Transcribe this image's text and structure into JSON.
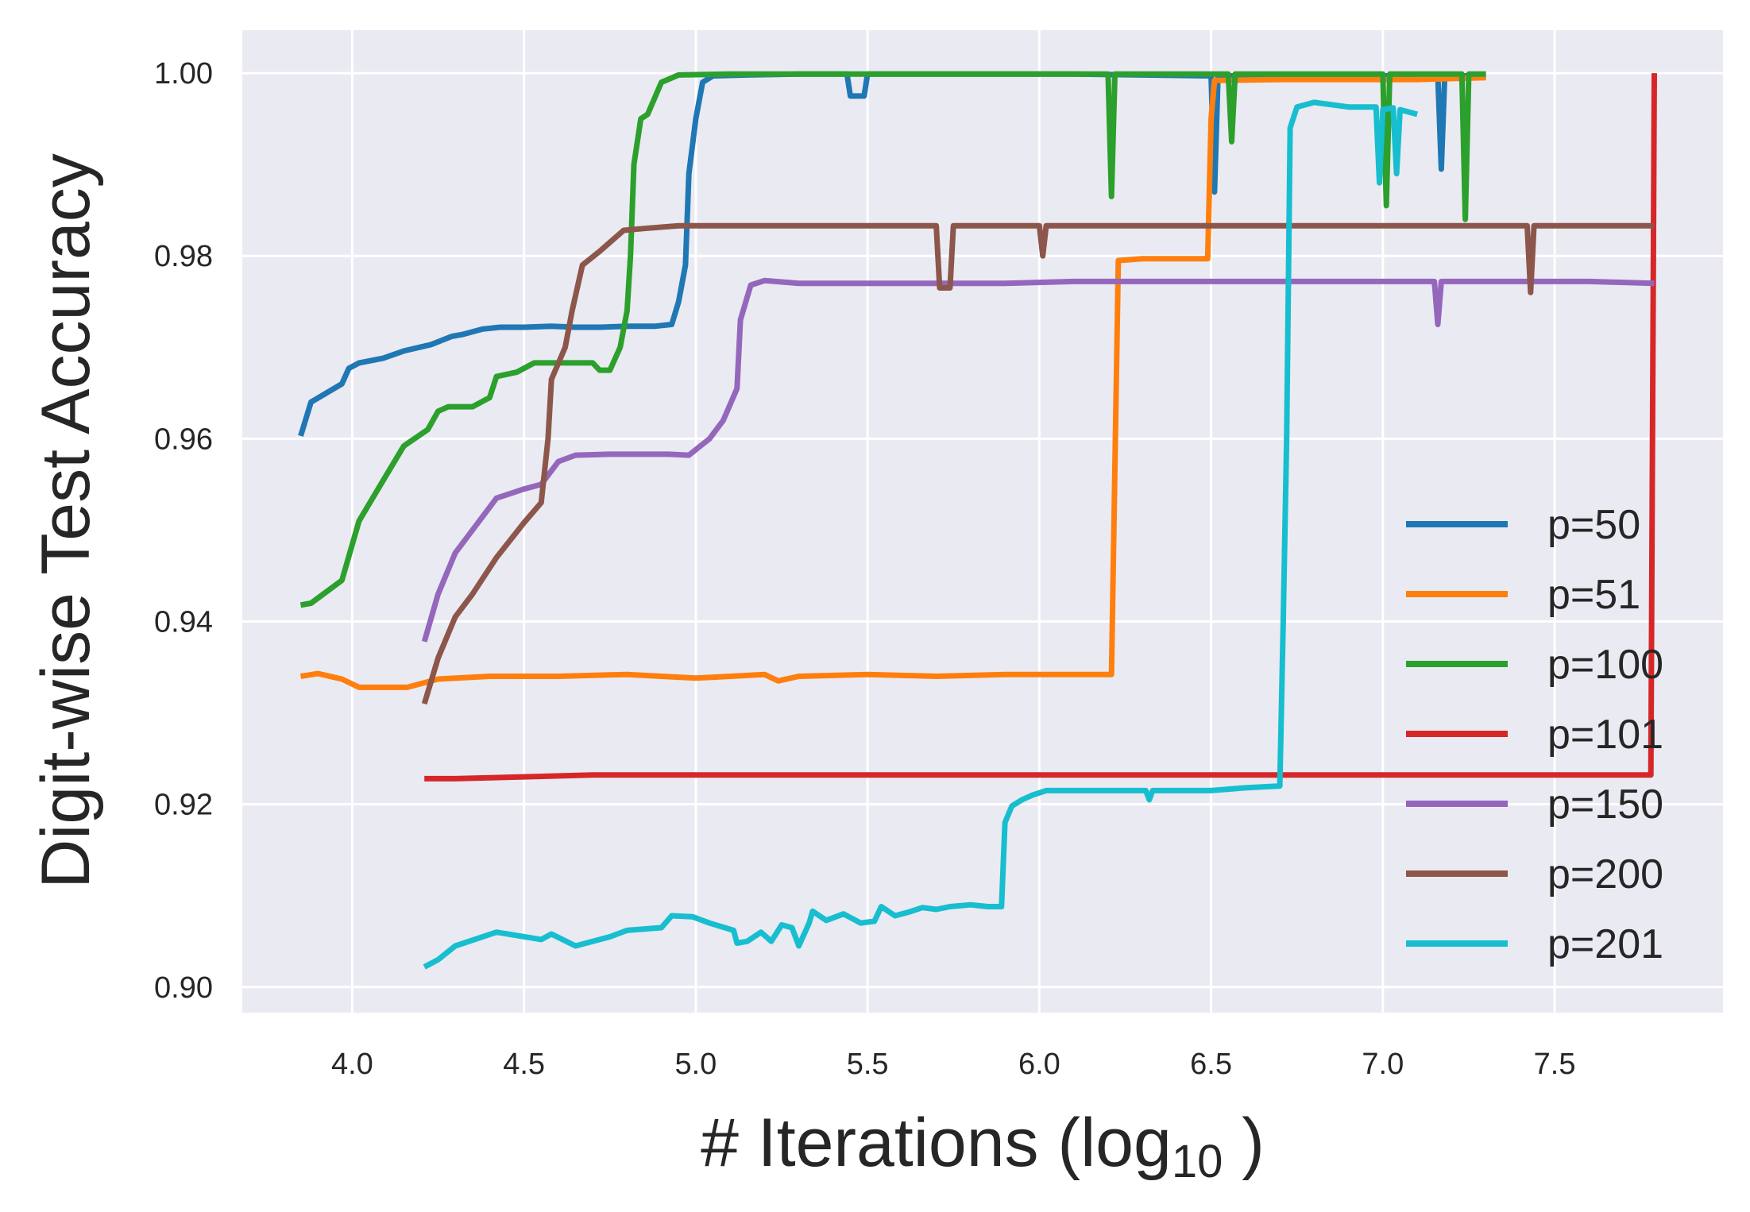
{
  "chart_data": {
    "type": "line",
    "title": "",
    "xlabel": "# Iterations (log",
    "xlabel_sub": "10",
    "xlabel_close": " )",
    "ylabel": "Digit-wise Test Accuracy",
    "xlim": [
      3.68,
      7.99
    ],
    "ylim": [
      0.8972,
      1.0047
    ],
    "xticks": [
      4.0,
      4.5,
      5.0,
      5.5,
      6.0,
      6.5,
      7.0,
      7.5
    ],
    "xtick_labels": [
      "4.0",
      "4.5",
      "5.0",
      "5.5",
      "6.0",
      "6.5",
      "7.0",
      "7.5"
    ],
    "yticks": [
      0.9,
      0.92,
      0.94,
      0.96,
      0.98,
      1.0
    ],
    "ytick_labels": [
      "0.90",
      "0.92",
      "0.94",
      "0.96",
      "0.98",
      "1.00"
    ],
    "grid": true,
    "legend": "center-right",
    "series": [
      {
        "name": "p=50",
        "color": "#1f77b4",
        "points": [
          [
            3.85,
            0.9603
          ],
          [
            3.88,
            0.964
          ],
          [
            3.97,
            0.966
          ],
          [
            3.99,
            0.9677
          ],
          [
            4.02,
            0.9683
          ],
          [
            4.09,
            0.9688
          ],
          [
            4.15,
            0.9696
          ],
          [
            4.23,
            0.9703
          ],
          [
            4.29,
            0.9712
          ],
          [
            4.32,
            0.9714
          ],
          [
            4.38,
            0.972
          ],
          [
            4.43,
            0.9722
          ],
          [
            4.5,
            0.9722
          ],
          [
            4.58,
            0.9723
          ],
          [
            4.65,
            0.9722
          ],
          [
            4.72,
            0.9722
          ],
          [
            4.8,
            0.9723
          ],
          [
            4.88,
            0.9723
          ],
          [
            4.93,
            0.9725
          ],
          [
            4.95,
            0.975
          ],
          [
            4.97,
            0.979
          ],
          [
            4.98,
            0.989
          ],
          [
            5.0,
            0.995
          ],
          [
            5.02,
            0.999
          ],
          [
            5.05,
            0.9997
          ],
          [
            5.15,
            0.9998
          ],
          [
            5.3,
            0.9999
          ],
          [
            5.44,
            0.9999
          ],
          [
            5.45,
            0.9975
          ],
          [
            5.49,
            0.9975
          ],
          [
            5.5,
            0.9999
          ],
          [
            5.7,
            0.9999
          ],
          [
            5.9,
            0.9999
          ],
          [
            6.1,
            0.9999
          ],
          [
            6.3,
            0.9998
          ],
          [
            6.5,
            0.9997
          ],
          [
            6.51,
            0.987
          ],
          [
            6.52,
            0.9997
          ],
          [
            6.7,
            0.9997
          ],
          [
            6.9,
            0.9997
          ],
          [
            7.1,
            0.9997
          ],
          [
            7.16,
            0.9997
          ],
          [
            7.17,
            0.9895
          ],
          [
            7.18,
            0.9997
          ],
          [
            7.3,
            0.9997
          ]
        ]
      },
      {
        "name": "p=51",
        "color": "#ff7f0e",
        "points": [
          [
            3.85,
            0.934
          ],
          [
            3.9,
            0.9343
          ],
          [
            3.97,
            0.9337
          ],
          [
            4.02,
            0.9328
          ],
          [
            4.1,
            0.9328
          ],
          [
            4.16,
            0.9328
          ],
          [
            4.25,
            0.9337
          ],
          [
            4.4,
            0.934
          ],
          [
            4.6,
            0.934
          ],
          [
            4.8,
            0.9342
          ],
          [
            5.0,
            0.9338
          ],
          [
            5.2,
            0.9342
          ],
          [
            5.24,
            0.9335
          ],
          [
            5.3,
            0.934
          ],
          [
            5.5,
            0.9342
          ],
          [
            5.7,
            0.934
          ],
          [
            5.9,
            0.9342
          ],
          [
            6.1,
            0.9342
          ],
          [
            6.21,
            0.9342
          ],
          [
            6.23,
            0.9795
          ],
          [
            6.3,
            0.9797
          ],
          [
            6.4,
            0.9797
          ],
          [
            6.49,
            0.9797
          ],
          [
            6.5,
            0.995
          ],
          [
            6.51,
            0.9992
          ],
          [
            6.7,
            0.9993
          ],
          [
            6.9,
            0.9993
          ],
          [
            7.1,
            0.9993
          ],
          [
            7.3,
            0.9995
          ]
        ]
      },
      {
        "name": "p=100",
        "color": "#2ca02c",
        "points": [
          [
            3.85,
            0.9418
          ],
          [
            3.88,
            0.942
          ],
          [
            3.97,
            0.9445
          ],
          [
            4.02,
            0.951
          ],
          [
            4.08,
            0.9548
          ],
          [
            4.15,
            0.9592
          ],
          [
            4.22,
            0.961
          ],
          [
            4.25,
            0.963
          ],
          [
            4.28,
            0.9635
          ],
          [
            4.35,
            0.9635
          ],
          [
            4.4,
            0.9645
          ],
          [
            4.42,
            0.9668
          ],
          [
            4.48,
            0.9673
          ],
          [
            4.53,
            0.9683
          ],
          [
            4.6,
            0.9683
          ],
          [
            4.7,
            0.9683
          ],
          [
            4.72,
            0.9675
          ],
          [
            4.75,
            0.9675
          ],
          [
            4.78,
            0.97
          ],
          [
            4.8,
            0.974
          ],
          [
            4.81,
            0.98
          ],
          [
            4.82,
            0.99
          ],
          [
            4.84,
            0.995
          ],
          [
            4.86,
            0.9955
          ],
          [
            4.9,
            0.999
          ],
          [
            4.95,
            0.9998
          ],
          [
            5.1,
            0.9999
          ],
          [
            5.3,
            0.9999
          ],
          [
            5.6,
            0.9999
          ],
          [
            5.9,
            0.9999
          ],
          [
            6.2,
            0.9999
          ],
          [
            6.21,
            0.9865
          ],
          [
            6.22,
            0.9999
          ],
          [
            6.5,
            0.9999
          ],
          [
            6.55,
            0.9999
          ],
          [
            6.56,
            0.9925
          ],
          [
            6.57,
            0.9999
          ],
          [
            6.9,
            0.9999
          ],
          [
            7.0,
            0.9999
          ],
          [
            7.01,
            0.9855
          ],
          [
            7.02,
            0.9999
          ],
          [
            7.23,
            0.9999
          ],
          [
            7.24,
            0.984
          ],
          [
            7.25,
            0.9999
          ],
          [
            7.3,
            0.9999
          ]
        ]
      },
      {
        "name": "p=101",
        "color": "#d62728",
        "points": [
          [
            4.21,
            0.9228
          ],
          [
            4.3,
            0.9228
          ],
          [
            4.5,
            0.923
          ],
          [
            4.7,
            0.9232
          ],
          [
            4.9,
            0.9232
          ],
          [
            5.1,
            0.9232
          ],
          [
            5.3,
            0.9232
          ],
          [
            5.5,
            0.9232
          ],
          [
            5.7,
            0.9232
          ],
          [
            5.9,
            0.9232
          ],
          [
            6.1,
            0.9232
          ],
          [
            6.3,
            0.9232
          ],
          [
            6.5,
            0.9232
          ],
          [
            6.7,
            0.9232
          ],
          [
            6.9,
            0.9232
          ],
          [
            7.1,
            0.9232
          ],
          [
            7.3,
            0.9232
          ],
          [
            7.5,
            0.9232
          ],
          [
            7.7,
            0.9232
          ],
          [
            7.78,
            0.9232
          ],
          [
            7.79,
            1.0
          ]
        ]
      },
      {
        "name": "p=150",
        "color": "#9467bd",
        "points": [
          [
            4.21,
            0.9378
          ],
          [
            4.25,
            0.943
          ],
          [
            4.3,
            0.9475
          ],
          [
            4.36,
            0.9505
          ],
          [
            4.42,
            0.9535
          ],
          [
            4.5,
            0.9545
          ],
          [
            4.55,
            0.955
          ],
          [
            4.6,
            0.9575
          ],
          [
            4.65,
            0.9582
          ],
          [
            4.75,
            0.9583
          ],
          [
            4.85,
            0.9583
          ],
          [
            4.92,
            0.9583
          ],
          [
            4.98,
            0.9582
          ],
          [
            5.04,
            0.96
          ],
          [
            5.08,
            0.962
          ],
          [
            5.12,
            0.9655
          ],
          [
            5.13,
            0.973
          ],
          [
            5.16,
            0.9768
          ],
          [
            5.2,
            0.9773
          ],
          [
            5.3,
            0.977
          ],
          [
            5.5,
            0.977
          ],
          [
            5.7,
            0.977
          ],
          [
            5.9,
            0.977
          ],
          [
            6.1,
            0.9772
          ],
          [
            6.3,
            0.9772
          ],
          [
            6.5,
            0.9772
          ],
          [
            6.7,
            0.9772
          ],
          [
            6.9,
            0.9772
          ],
          [
            7.1,
            0.9772
          ],
          [
            7.15,
            0.9772
          ],
          [
            7.16,
            0.9725
          ],
          [
            7.17,
            0.9772
          ],
          [
            7.4,
            0.9772
          ],
          [
            7.6,
            0.9772
          ],
          [
            7.79,
            0.977
          ]
        ]
      },
      {
        "name": "p=200",
        "color": "#8c564b",
        "points": [
          [
            4.21,
            0.931
          ],
          [
            4.25,
            0.936
          ],
          [
            4.3,
            0.9405
          ],
          [
            4.35,
            0.943
          ],
          [
            4.42,
            0.947
          ],
          [
            4.5,
            0.9508
          ],
          [
            4.55,
            0.953
          ],
          [
            4.57,
            0.96
          ],
          [
            4.58,
            0.9665
          ],
          [
            4.62,
            0.97
          ],
          [
            4.64,
            0.974
          ],
          [
            4.67,
            0.979
          ],
          [
            4.72,
            0.9805
          ],
          [
            4.79,
            0.9828
          ],
          [
            4.85,
            0.983
          ],
          [
            4.95,
            0.9833
          ],
          [
            5.1,
            0.9833
          ],
          [
            5.3,
            0.9833
          ],
          [
            5.5,
            0.9833
          ],
          [
            5.7,
            0.9833
          ],
          [
            5.71,
            0.9765
          ],
          [
            5.74,
            0.9765
          ],
          [
            5.75,
            0.9833
          ],
          [
            5.95,
            0.9833
          ],
          [
            6.0,
            0.9833
          ],
          [
            6.01,
            0.98
          ],
          [
            6.02,
            0.9833
          ],
          [
            6.2,
            0.9833
          ],
          [
            6.4,
            0.9833
          ],
          [
            6.6,
            0.9833
          ],
          [
            6.8,
            0.9833
          ],
          [
            7.0,
            0.9833
          ],
          [
            7.2,
            0.9833
          ],
          [
            7.42,
            0.9833
          ],
          [
            7.43,
            0.976
          ],
          [
            7.44,
            0.9833
          ],
          [
            7.6,
            0.9833
          ],
          [
            7.79,
            0.9833
          ]
        ]
      },
      {
        "name": "p=201",
        "color": "#17becf",
        "points": [
          [
            4.21,
            0.9022
          ],
          [
            4.25,
            0.903
          ],
          [
            4.3,
            0.9045
          ],
          [
            4.42,
            0.906
          ],
          [
            4.55,
            0.9052
          ],
          [
            4.58,
            0.9058
          ],
          [
            4.65,
            0.9045
          ],
          [
            4.75,
            0.9055
          ],
          [
            4.8,
            0.9062
          ],
          [
            4.9,
            0.9065
          ],
          [
            4.93,
            0.9078
          ],
          [
            4.99,
            0.9077
          ],
          [
            5.04,
            0.907
          ],
          [
            5.11,
            0.9062
          ],
          [
            5.12,
            0.9048
          ],
          [
            5.15,
            0.905
          ],
          [
            5.19,
            0.906
          ],
          [
            5.22,
            0.905
          ],
          [
            5.25,
            0.9068
          ],
          [
            5.28,
            0.9065
          ],
          [
            5.3,
            0.9045
          ],
          [
            5.33,
            0.907
          ],
          [
            5.34,
            0.9083
          ],
          [
            5.38,
            0.9073
          ],
          [
            5.43,
            0.908
          ],
          [
            5.48,
            0.907
          ],
          [
            5.52,
            0.9072
          ],
          [
            5.54,
            0.9088
          ],
          [
            5.58,
            0.9078
          ],
          [
            5.62,
            0.9082
          ],
          [
            5.66,
            0.9087
          ],
          [
            5.7,
            0.9085
          ],
          [
            5.74,
            0.9088
          ],
          [
            5.8,
            0.909
          ],
          [
            5.85,
            0.9088
          ],
          [
            5.89,
            0.9088
          ],
          [
            5.9,
            0.918
          ],
          [
            5.92,
            0.9198
          ],
          [
            5.95,
            0.9205
          ],
          [
            5.98,
            0.921
          ],
          [
            6.02,
            0.9215
          ],
          [
            6.2,
            0.9215
          ],
          [
            6.31,
            0.9215
          ],
          [
            6.32,
            0.9205
          ],
          [
            6.33,
            0.9215
          ],
          [
            6.5,
            0.9215
          ],
          [
            6.6,
            0.9218
          ],
          [
            6.7,
            0.922
          ],
          [
            6.71,
            0.94
          ],
          [
            6.72,
            0.96
          ],
          [
            6.73,
            0.994
          ],
          [
            6.75,
            0.9963
          ],
          [
            6.8,
            0.9968
          ],
          [
            6.9,
            0.9963
          ],
          [
            6.98,
            0.9963
          ],
          [
            6.99,
            0.988
          ],
          [
            7.0,
            0.996
          ],
          [
            7.03,
            0.9962
          ],
          [
            7.04,
            0.989
          ],
          [
            7.05,
            0.996
          ],
          [
            7.1,
            0.9955
          ]
        ]
      }
    ]
  }
}
